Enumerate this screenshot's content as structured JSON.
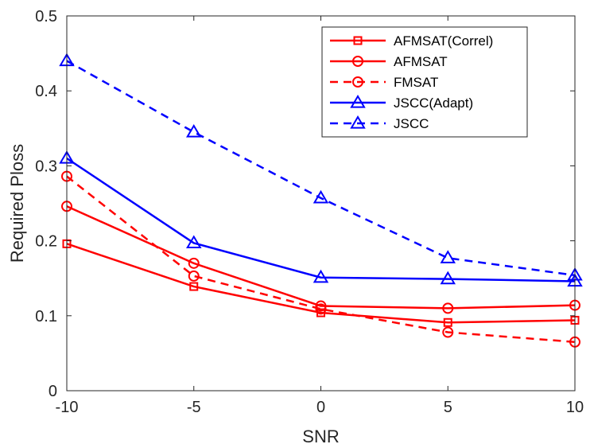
{
  "chart_data": {
    "type": "line",
    "title": "",
    "xlabel": "SNR",
    "ylabel": "Required Ploss",
    "x": [
      -10,
      -5,
      0,
      5,
      10
    ],
    "xlim": [
      -10,
      10
    ],
    "ylim": [
      0,
      0.5
    ],
    "xticks": [
      -10,
      -5,
      0,
      5,
      10
    ],
    "xtick_labels": [
      "-10",
      "-5",
      "0",
      "5",
      "10"
    ],
    "yticks": [
      0,
      0.1,
      0.2,
      0.3,
      0.4,
      0.5
    ],
    "ytick_labels": [
      "0",
      "0.1",
      "0.2",
      "0.3",
      "0.4",
      "0.5"
    ],
    "grid": false,
    "legend_position": "top-right",
    "series": [
      {
        "name": "AFMSAT(Correl)",
        "values": [
          0.196,
          0.139,
          0.104,
          0.091,
          0.094
        ],
        "color": "#ff0000",
        "style": "solid",
        "marker": "square"
      },
      {
        "name": "AFMSAT",
        "values": [
          0.246,
          0.17,
          0.113,
          0.11,
          0.114
        ],
        "color": "#ff0000",
        "style": "solid",
        "marker": "circle"
      },
      {
        "name": "FMSAT",
        "values": [
          0.286,
          0.153,
          0.109,
          0.078,
          0.065
        ],
        "color": "#ff0000",
        "style": "dashed",
        "marker": "circle"
      },
      {
        "name": "JSCC(Adapt)",
        "values": [
          0.31,
          0.197,
          0.151,
          0.149,
          0.146
        ],
        "color": "#0000ff",
        "style": "solid",
        "marker": "triangle"
      },
      {
        "name": "JSCC",
        "values": [
          0.44,
          0.345,
          0.257,
          0.177,
          0.154
        ],
        "color": "#0000ff",
        "style": "dashed",
        "marker": "triangle"
      }
    ]
  }
}
